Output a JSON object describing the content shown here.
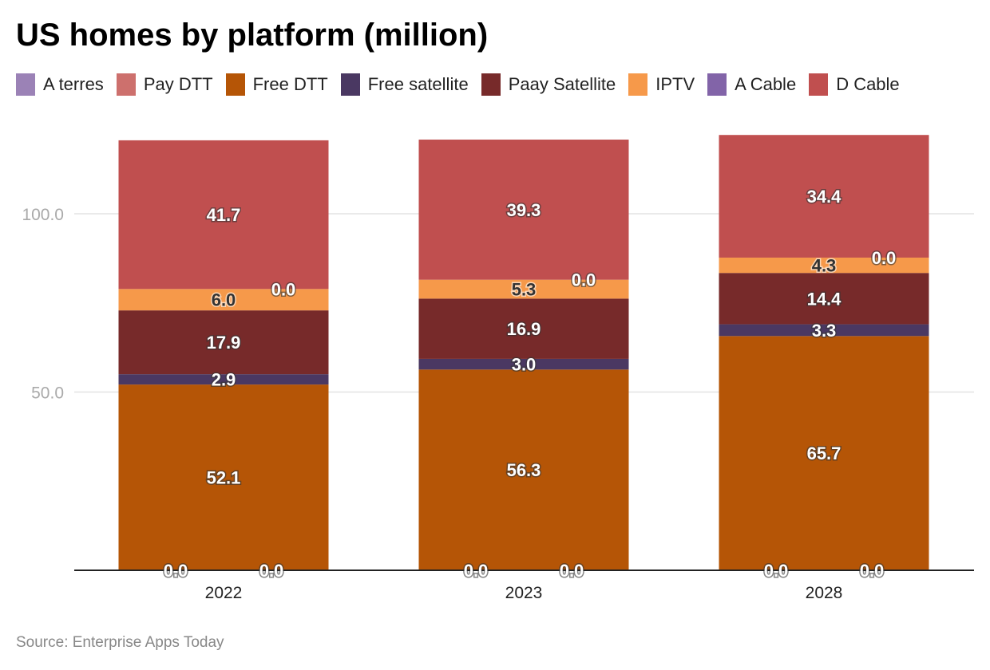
{
  "title": "US homes by platform (million)",
  "source": "Source: Enterprise Apps Today",
  "chart_data": {
    "type": "bar",
    "stacked": true,
    "title": "US homes by platform (million)",
    "categories": [
      "2022",
      "2023",
      "2028"
    ],
    "series": [
      {
        "name": "A terres",
        "color": "#9b82b6",
        "values": [
          0.0,
          0.0,
          0.0
        ]
      },
      {
        "name": "Pay DTT",
        "color": "#cd706d",
        "values": [
          0.0,
          0.0,
          0.0
        ]
      },
      {
        "name": "Free DTT",
        "color": "#b55506",
        "values": [
          52.1,
          56.3,
          65.7
        ]
      },
      {
        "name": "Free satellite",
        "color": "#4a3862",
        "values": [
          2.9,
          3.0,
          3.3
        ]
      },
      {
        "name": "Paay Satellite",
        "color": "#772a2a",
        "values": [
          17.9,
          16.9,
          14.4
        ]
      },
      {
        "name": "IPTV",
        "color": "#f6994a",
        "values": [
          6.0,
          5.3,
          4.3
        ]
      },
      {
        "name": "A Cable",
        "color": "#8264a8",
        "values": [
          0.0,
          0.0,
          0.0
        ]
      },
      {
        "name": "D Cable",
        "color": "#c04f4f",
        "values": [
          41.7,
          39.3,
          34.4
        ]
      }
    ],
    "yticks": [
      "50.0",
      "100.0"
    ],
    "ylim": [
      0,
      122
    ],
    "grid": true,
    "legend": "top",
    "xlabel": "",
    "ylabel": ""
  }
}
